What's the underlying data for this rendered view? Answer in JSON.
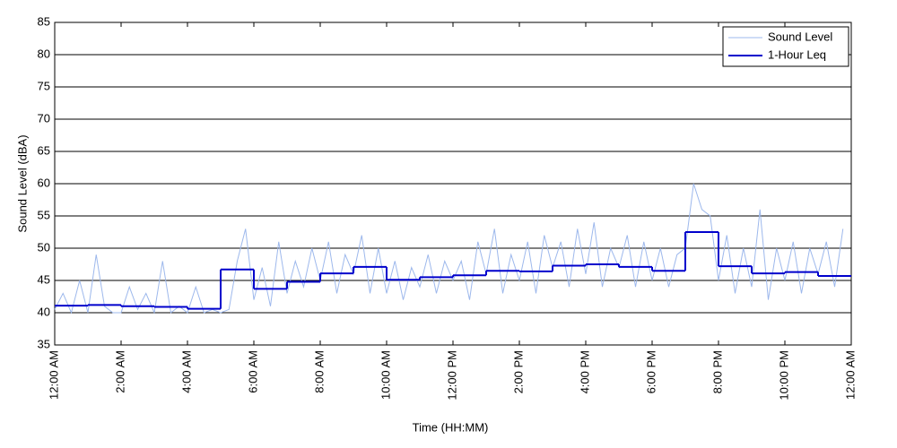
{
  "chart_data": {
    "type": "line",
    "xlabel": "Time (HH:MM)",
    "ylabel": "Sound Level (dBA)",
    "xlim": [
      0,
      24
    ],
    "ylim": [
      35,
      85
    ],
    "xticks": [
      {
        "value": 0,
        "label": "12:00 AM"
      },
      {
        "value": 2,
        "label": "2:00 AM"
      },
      {
        "value": 4,
        "label": "4:00 AM"
      },
      {
        "value": 6,
        "label": "6:00 AM"
      },
      {
        "value": 8,
        "label": "8:00 AM"
      },
      {
        "value": 10,
        "label": "10:00 AM"
      },
      {
        "value": 12,
        "label": "12:00 PM"
      },
      {
        "value": 14,
        "label": "2:00 PM"
      },
      {
        "value": 16,
        "label": "4:00 PM"
      },
      {
        "value": 18,
        "label": "6:00 PM"
      },
      {
        "value": 20,
        "label": "8:00 PM"
      },
      {
        "value": 22,
        "label": "10:00 PM"
      },
      {
        "value": 24,
        "label": "12:00 AM"
      }
    ],
    "yticks": [
      35,
      40,
      45,
      50,
      55,
      60,
      65,
      70,
      75,
      80,
      85
    ],
    "grid": true,
    "legend": "upper right",
    "series": [
      {
        "name": "Sound Level",
        "color": "#9db8ec",
        "x": [
          0,
          0.25,
          0.5,
          0.75,
          1,
          1.25,
          1.5,
          1.75,
          2,
          2.25,
          2.5,
          2.75,
          3,
          3.25,
          3.5,
          3.75,
          4,
          4.25,
          4.5,
          4.75,
          5,
          5.25,
          5.5,
          5.75,
          6,
          6.25,
          6.5,
          6.75,
          7,
          7.25,
          7.5,
          7.75,
          8,
          8.25,
          8.5,
          8.75,
          9,
          9.25,
          9.5,
          9.75,
          10,
          10.25,
          10.5,
          10.75,
          11,
          11.25,
          11.5,
          11.75,
          12,
          12.25,
          12.5,
          12.75,
          13,
          13.25,
          13.5,
          13.75,
          14,
          14.25,
          14.5,
          14.75,
          15,
          15.25,
          15.5,
          15.75,
          16,
          16.25,
          16.5,
          16.75,
          17,
          17.25,
          17.5,
          17.75,
          18,
          18.25,
          18.5,
          18.75,
          19,
          19.25,
          19.5,
          19.75,
          20,
          20.25,
          20.5,
          20.75,
          21,
          21.25,
          21.5,
          21.75,
          22,
          22.25,
          22.5,
          22.75,
          23,
          23.25,
          23.5,
          23.75
        ],
        "values": [
          40.5,
          43,
          40,
          45,
          40,
          49,
          41,
          40,
          40,
          44,
          40.5,
          43,
          40,
          48,
          40,
          41,
          40,
          44,
          40,
          40.5,
          40,
          40.5,
          48,
          53,
          42,
          47,
          41,
          51,
          43,
          48,
          44,
          50,
          45,
          51,
          43,
          49,
          46,
          52,
          43,
          50,
          43,
          48,
          42,
          47,
          44,
          49,
          43,
          48,
          45,
          48,
          42,
          51,
          46,
          53,
          43,
          49,
          45,
          51,
          43,
          52,
          47,
          51,
          44,
          53,
          46,
          54,
          44,
          50,
          47,
          52,
          44,
          51,
          45,
          50,
          44,
          49,
          50,
          60,
          56,
          55,
          45,
          52,
          43,
          50,
          44,
          56,
          42,
          50,
          45,
          51,
          43,
          50,
          46,
          51,
          44,
          53
        ]
      },
      {
        "name": "1-Hour Leq",
        "color": "#0000cc",
        "x": [
          0,
          1,
          2,
          3,
          4,
          5,
          6,
          7,
          8,
          9,
          10,
          11,
          12,
          13,
          14,
          15,
          16,
          17,
          18,
          19,
          20,
          21,
          22,
          23
        ],
        "values": [
          41.1,
          41.2,
          41.0,
          40.9,
          40.6,
          46.7,
          43.7,
          44.8,
          46.1,
          47.1,
          45.1,
          45.5,
          45.8,
          46.5,
          46.4,
          47.3,
          47.5,
          47.1,
          46.5,
          52.5,
          47.2,
          46.1,
          46.3,
          45.7
        ]
      }
    ]
  }
}
